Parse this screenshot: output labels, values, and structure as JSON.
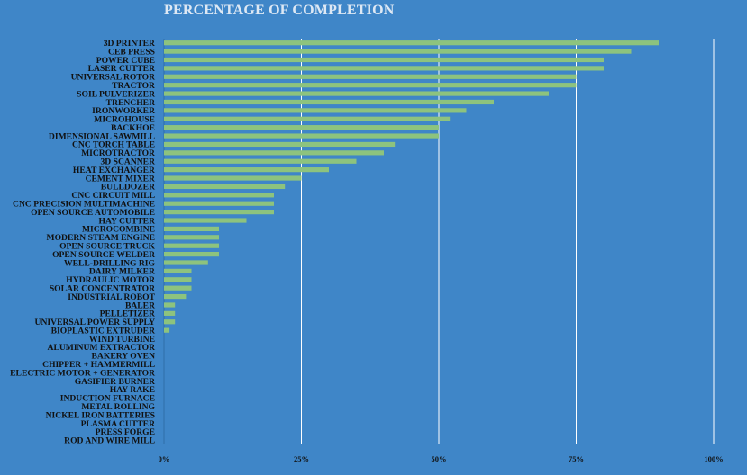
{
  "chart_data": {
    "type": "bar",
    "orientation": "horizontal",
    "title": "PERCENTAGE OF COMPLETION",
    "xlabel": "",
    "ylabel": "",
    "xlim": [
      0,
      100
    ],
    "grid": true,
    "x_ticks": [
      0,
      25,
      50,
      75,
      100
    ],
    "x_tick_labels": [
      "0%",
      "25%",
      "50%",
      "75%",
      "100%"
    ],
    "categories": [
      "3D PRINTER",
      "CEB PRESS",
      "POWER CUBE",
      "LASER CUTTER",
      "UNIVERSAL ROTOR",
      "TRACTOR",
      "SOIL PULVERIZER",
      "TRENCHER",
      "IRONWORKER",
      "MICROHOUSE",
      "BACKHOE",
      "DIMENSIONAL SAWMILL",
      "CNC TORCH TABLE",
      "MICROTRACTOR",
      "3D SCANNER",
      "HEAT EXCHANGER",
      "CEMENT MIXER",
      "BULLDOZER",
      "CNC CIRCUIT MILL",
      "CNC PRECISION MULTIMACHINE",
      "OPEN SOURCE AUTOMOBILE",
      "HAY CUTTER",
      "MICROCOMBINE",
      "MODERN STEAM ENGINE",
      "OPEN SOURCE TRUCK",
      "OPEN SOURCE WELDER",
      "WELL-DRILLING RIG",
      "DAIRY MILKER",
      "HYDRAULIC MOTOR",
      "SOLAR CONCENTRATOR",
      "INDUSTRIAL ROBOT",
      "BALER",
      "PELLETIZER",
      "UNIVERSAL POWER SUPPLY",
      "BIOPLASTIC EXTRUDER",
      "WIND TURBINE",
      "ALUMINUM EXTRACTOR",
      "BAKERY OVEN",
      "CHIPPER + HAMMERMILL",
      "ELECTRIC MOTOR + GENERATOR",
      "GASIFIER BURNER",
      "HAY RAKE",
      "INDUCTION FURNACE",
      "METAL ROLLING",
      "NICKEL IRON BATTERIES",
      "PLASMA CUTTER",
      "PRESS FORGE",
      "ROD AND WIRE MILL"
    ],
    "values": [
      90,
      85,
      80,
      80,
      75,
      75,
      70,
      60,
      55,
      52,
      50,
      50,
      42,
      40,
      35,
      30,
      25,
      22,
      20,
      20,
      20,
      15,
      10,
      10,
      10,
      10,
      8,
      5,
      5,
      5,
      4,
      2,
      2,
      2,
      1,
      0,
      0,
      0,
      0,
      0,
      0,
      0,
      0,
      0,
      0,
      0,
      0,
      0
    ],
    "colors": {
      "background": "#3f86c8",
      "bar": "#8dc37e",
      "grid": "#ffffff",
      "text": "#111111",
      "title": "#dde8f4"
    }
  }
}
